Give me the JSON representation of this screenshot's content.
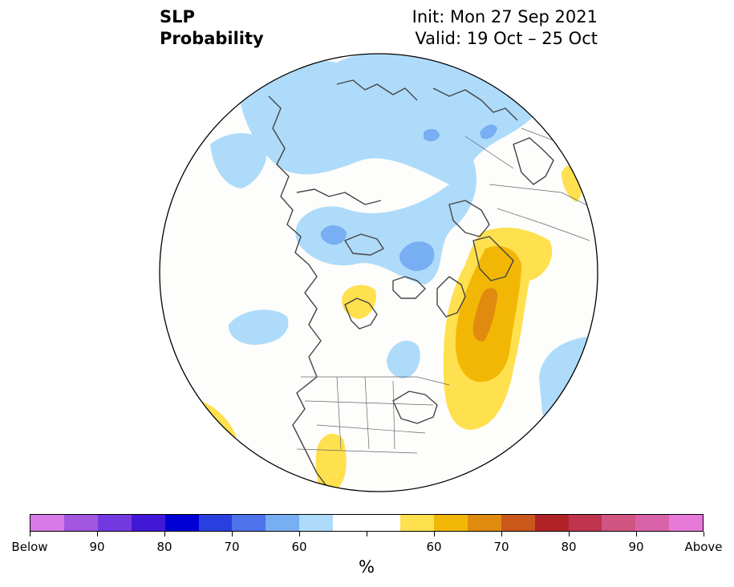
{
  "title": {
    "left_line1": "SLP",
    "left_line2": "Probability",
    "right_line1": "Init: Mon 27 Sep 2021",
    "right_line2": "Valid: 19 Oct – 25 Oct"
  },
  "colorbar": {
    "unit": "%",
    "colors": [
      "#d87ae8",
      "#a356e0",
      "#7339e0",
      "#4218d8",
      "#0000d4",
      "#2a3fe0",
      "#4f73ea",
      "#78aef2",
      "#aedbfa",
      "#ffffff",
      "#ffffff",
      "#ffe04e",
      "#f2b705",
      "#e08a10",
      "#c9581a",
      "#b12226",
      "#c0344e",
      "#d05580",
      "#d963a8",
      "#e77ad8"
    ],
    "tick_labels": [
      "Below",
      "90",
      "80",
      "70",
      "60",
      "",
      "",
      "60",
      "70",
      "80",
      "90",
      "Above"
    ]
  },
  "map_colors": {
    "background": "#fdfdfb",
    "light_blue": "#aedbfa",
    "mid_blue": "#78aef2",
    "yellow": "#ffe04e",
    "gold": "#f2b705",
    "orange": "#e08a10",
    "coast": "#444444"
  }
}
